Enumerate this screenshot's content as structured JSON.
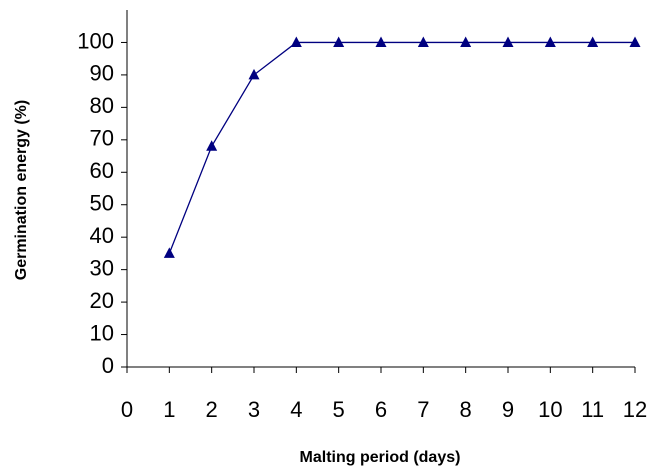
{
  "chart_data": {
    "type": "line",
    "x_label": "Malting period (days)",
    "y_label": "Germination energy (%)",
    "x": [
      1,
      2,
      3,
      4,
      5,
      6,
      7,
      8,
      9,
      10,
      11,
      12
    ],
    "series": [
      {
        "name": "Germination energy",
        "color": "#000080",
        "values": [
          35,
          68,
          90,
          100,
          100,
          100,
          100,
          100,
          100,
          100,
          100,
          100
        ]
      }
    ],
    "xlim": [
      0,
      12
    ],
    "xticks": [
      0,
      1,
      2,
      3,
      4,
      5,
      6,
      7,
      8,
      9,
      10,
      11,
      12
    ],
    "ylim": [
      0,
      110
    ],
    "yticks": [
      0,
      10,
      20,
      30,
      40,
      50,
      60,
      70,
      80,
      90,
      100
    ],
    "marker": "triangle",
    "grid": false
  }
}
